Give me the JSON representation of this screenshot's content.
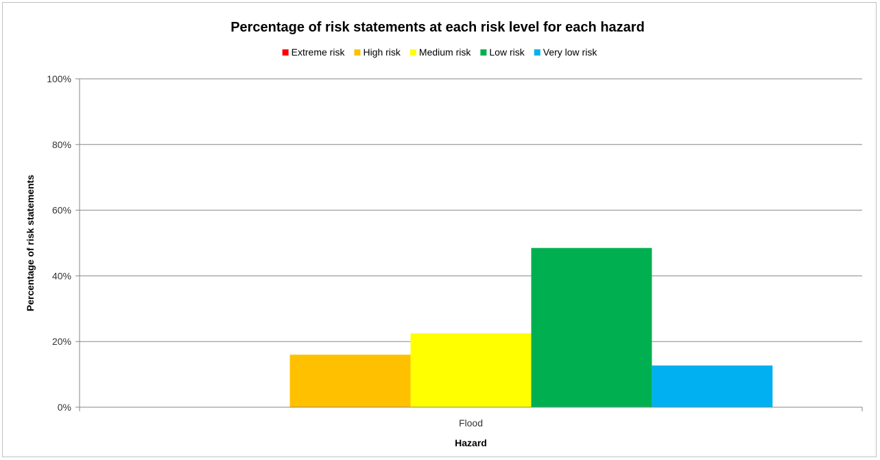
{
  "chart_data": {
    "type": "bar",
    "title": "Percentage of risk statements at each risk level for each hazard",
    "xlabel": "Hazard",
    "ylabel": "Percentage of risk statements",
    "categories": [
      "Flood"
    ],
    "series": [
      {
        "name": "Extreme risk",
        "color": "#ff0000",
        "values": [
          0
        ]
      },
      {
        "name": "High risk",
        "color": "#ffc000",
        "values": [
          16
        ]
      },
      {
        "name": "Medium risk",
        "color": "#ffff00",
        "values": [
          22.5
        ]
      },
      {
        "name": "Low risk",
        "color": "#00b050",
        "values": [
          48.5
        ]
      },
      {
        "name": "Very low risk",
        "color": "#00b0f0",
        "values": [
          12.7
        ]
      }
    ],
    "ylim": [
      0,
      100
    ],
    "yticks": [
      0,
      20,
      40,
      60,
      80,
      100
    ],
    "ytick_labels": [
      "0%",
      "20%",
      "40%",
      "60%",
      "80%",
      "100%"
    ],
    "grid": true,
    "legend_position": "top"
  }
}
